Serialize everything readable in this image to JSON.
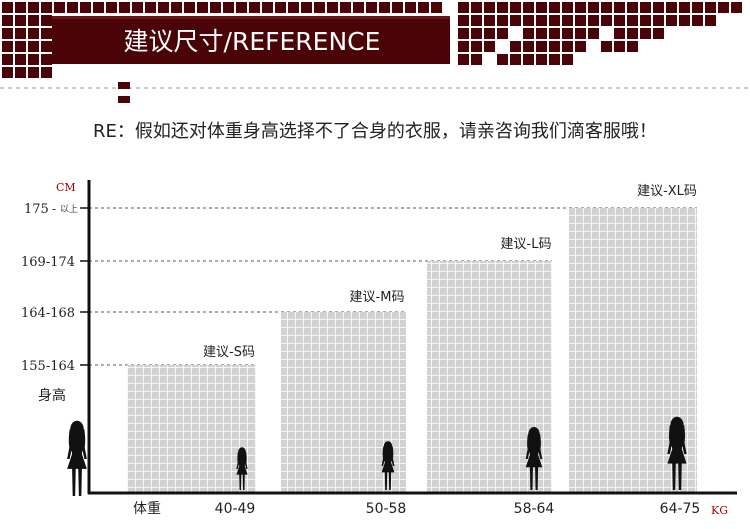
{
  "banner": {
    "title": "建议尺寸/REFERENCE",
    "bg_color": "#4a0408",
    "tile_color": "#5a0c10"
  },
  "notice": "RE：假如还对体重身高选择不了合身的衣服，请亲咨询我们滴客服哦！",
  "chart_data": {
    "type": "bar",
    "title": "",
    "y_unit": "CM",
    "x_unit": "KG",
    "ylabel": "身高",
    "xlabel": "体重",
    "y_levels": [
      "155-164",
      "164-168",
      "169-174",
      "175"
    ],
    "y_top_note": "以上",
    "categories": [
      "40-49",
      "50-58",
      "58-64",
      "64-75"
    ],
    "series": [
      {
        "values": [
          "155-164",
          "164-168",
          "169-174",
          "175"
        ]
      }
    ],
    "bar_labels": [
      "建议-S码",
      "建议-M码",
      "建议-L码",
      "建议-XL码"
    ],
    "bar_color": "#d2d2d2",
    "grid_line_color": "#ffffff",
    "axis_color": "#111111",
    "unit_color": "#b00000"
  }
}
